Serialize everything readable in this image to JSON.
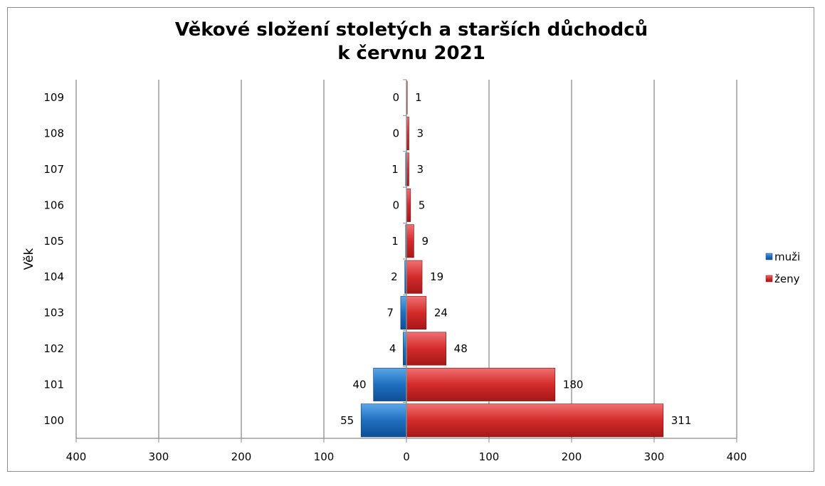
{
  "chart_data": {
    "type": "bar",
    "orientation": "horizontal",
    "layout": "population-pyramid",
    "title": [
      "Věkové složení stoletých a starších důchodců",
      "k červnu 2021"
    ],
    "ylabel": "Věk",
    "xlabel": "",
    "categories": [
      "100",
      "101",
      "102",
      "103",
      "104",
      "105",
      "106",
      "107",
      "108",
      "109"
    ],
    "series": [
      {
        "name": "muži",
        "color": "#1f6fbf",
        "side": "left",
        "values": [
          55,
          40,
          4,
          7,
          2,
          1,
          0,
          1,
          0,
          0
        ]
      },
      {
        "name": "ženy",
        "color": "#d32b2b",
        "side": "right",
        "values": [
          311,
          180,
          48,
          24,
          19,
          9,
          5,
          3,
          3,
          1
        ]
      }
    ],
    "xlim": [
      -400,
      400
    ],
    "x_ticks": [
      -400,
      -300,
      -200,
      -100,
      0,
      100,
      200,
      300,
      400
    ],
    "x_tick_labels": [
      "400",
      "300",
      "200",
      "100",
      "0",
      "100",
      "200",
      "300",
      "400"
    ],
    "grid": "vertical",
    "legend_position": "right"
  }
}
